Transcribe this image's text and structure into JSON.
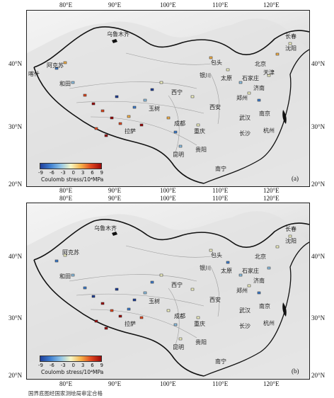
{
  "panels": [
    {
      "tag": "(a)",
      "axis": {
        "top": [
          "80°E",
          "90°E",
          "100°E",
          "110°E",
          "120°E"
        ],
        "bottom": [
          "80°E",
          "90°E",
          "100°E",
          "110°E",
          "120°E"
        ],
        "left": [
          "40°N",
          "30°N",
          "20°N"
        ],
        "right": [
          "40°N",
          "30°N",
          "20°N"
        ]
      },
      "colorbar": {
        "ticks": [
          "-9",
          "-6",
          "-3",
          "0",
          "3",
          "6",
          "9"
        ],
        "label": "Coulomb stress/10⁴MPa",
        "colors": [
          "#1f3f9a",
          "#3f7fd0",
          "#8fc3e6",
          "#f7f7c6",
          "#f6b24a",
          "#e0471f",
          "#9e0a0a"
        ]
      },
      "cities": [
        "乌鲁木齐",
        "阿克苏",
        "喀什",
        "和田",
        "拉萨",
        "玉树",
        "成都",
        "重庆",
        "贵阳",
        "昆明",
        "南宁",
        "西安",
        "武汉",
        "长沙",
        "杭州",
        "南京",
        "济南",
        "郑州",
        "石家庄",
        "太原",
        "银川",
        "包头",
        "北京",
        "天津",
        "沈阳",
        "长春",
        "西宁"
      ]
    },
    {
      "tag": "(b)",
      "axis": {
        "top": [
          "80°E",
          "90°E",
          "100°E",
          "110°E",
          "120°E"
        ],
        "bottom": [
          "80°E",
          "90°E",
          "100°E",
          "110°E",
          "120°E"
        ],
        "left": [
          "40°N",
          "30°N",
          "20°N"
        ],
        "right": [
          "40°N",
          "30°N",
          "20°N"
        ]
      },
      "colorbar": {
        "ticks": [
          "-9",
          "-6",
          "-3",
          "0",
          "3",
          "6",
          "9"
        ],
        "label": "Coulomb stress/10⁴MPa",
        "colors": [
          "#1f3f9a",
          "#3f7fd0",
          "#8fc3e6",
          "#f7f7c6",
          "#f6b24a",
          "#e0471f",
          "#9e0a0a"
        ]
      },
      "cities": [
        "乌鲁木齐",
        "阿克苏",
        "和田",
        "拉萨",
        "玉树",
        "成都",
        "重庆",
        "贵阳",
        "昆明",
        "南宁",
        "西安",
        "武汉",
        "长沙",
        "杭州",
        "南京",
        "济南",
        "郑州",
        "石家庄",
        "太原",
        "银川",
        "包头",
        "北京",
        "沈阳",
        "长春",
        "西宁"
      ]
    }
  ],
  "footer": "国界底图经国家测绘局审定合格"
}
